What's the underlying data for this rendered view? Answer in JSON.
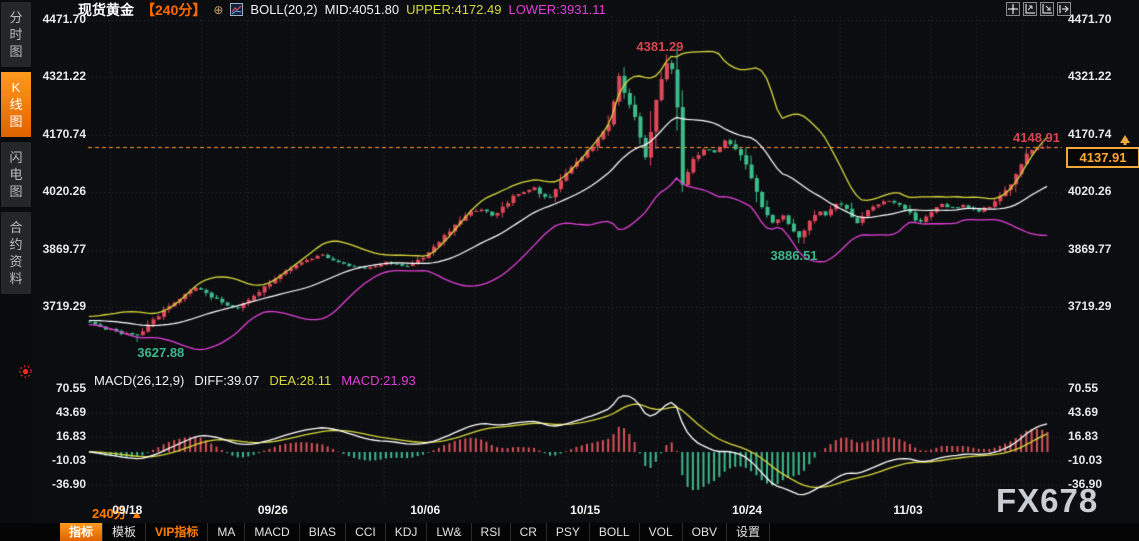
{
  "header": {
    "symbol": "现货黄金",
    "period": "【240分】",
    "plus_icon": "⊕",
    "boll_label": "BOLL(20,2)",
    "mid": "MID:4051.80",
    "upper": "UPPER:4172.49",
    "lower": "LOWER:3931.11"
  },
  "sidebar": {
    "tabs": [
      {
        "label": "分时图",
        "active": false
      },
      {
        "label": "K线图",
        "active": true
      },
      {
        "label": "闪电图",
        "active": false
      },
      {
        "label": "合约资料",
        "active": false
      }
    ]
  },
  "main_axis": {
    "ticks": [
      {
        "label": "4471.70",
        "price": 4471.7
      },
      {
        "label": "4321.22",
        "price": 4321.22
      },
      {
        "label": "4170.74",
        "price": 4170.74
      },
      {
        "label": "4020.26",
        "price": 4020.26
      },
      {
        "label": "3869.77",
        "price": 3869.77
      },
      {
        "label": "3719.29",
        "price": 3719.29
      }
    ]
  },
  "annotations": [
    {
      "text": "4381.29",
      "t": 0.597,
      "price": 4401,
      "color": "#d64550",
      "align": "center"
    },
    {
      "text": "4148.91",
      "t": 0.995,
      "price": 4163,
      "color": "#d64550",
      "align": "right"
    },
    {
      "text": "3886.51",
      "t": 0.737,
      "price": 3854,
      "color": "#3cb98a",
      "align": "center"
    },
    {
      "text": "3627.88",
      "t": 0.076,
      "price": 3599,
      "color": "#3cb98a",
      "align": "center"
    }
  ],
  "price_tag": {
    "value": "4137.91",
    "price": 4137.91
  },
  "macd_pane": {
    "title": "MACD(26,12,9)",
    "diff_label": "DIFF:39.07",
    "dea_label": "DEA:28.11",
    "macd_label": "MACD:21.93",
    "ticks": [
      {
        "label": "70.55",
        "value": 70.55
      },
      {
        "label": "43.69",
        "value": 43.69
      },
      {
        "label": "16.83",
        "value": 16.83
      },
      {
        "label": "-10.03",
        "value": -10.03
      },
      {
        "label": "-36.90",
        "value": -36.9
      }
    ]
  },
  "xaxis": {
    "period_label": "240分 ▲",
    "dates": [
      {
        "label": "09/18",
        "t": 0.041
      },
      {
        "label": "09/26",
        "t": 0.193
      },
      {
        "label": "10/06",
        "t": 0.352
      },
      {
        "label": "10/15",
        "t": 0.519
      },
      {
        "label": "10/24",
        "t": 0.688
      },
      {
        "label": "11/03",
        "t": 0.856
      }
    ]
  },
  "toolbar": {
    "items": [
      {
        "label": "指标",
        "style": "active"
      },
      {
        "label": "模板",
        "style": "normal"
      },
      {
        "label": "VIP指标",
        "style": "vip"
      },
      {
        "label": "MA",
        "style": "normal"
      },
      {
        "label": "MACD",
        "style": "normal"
      },
      {
        "label": "BIAS",
        "style": "normal"
      },
      {
        "label": "CCI",
        "style": "normal"
      },
      {
        "label": "KDJ",
        "style": "normal"
      },
      {
        "label": "LW&",
        "style": "normal"
      },
      {
        "label": "RSI",
        "style": "normal"
      },
      {
        "label": "CR",
        "style": "normal"
      },
      {
        "label": "PSY",
        "style": "normal"
      },
      {
        "label": "BOLL",
        "style": "normal"
      },
      {
        "label": "VOL",
        "style": "normal"
      },
      {
        "label": "OBV",
        "style": "normal"
      },
      {
        "label": "设置",
        "style": "normal"
      }
    ]
  },
  "watermark": "FX678",
  "colors": {
    "bg": "#0c0d10",
    "up": "#e0485a",
    "down": "#3bbd8b",
    "boll_upper": "#d6d93c",
    "boll_mid": "#ffffff",
    "boll_lower": "#e23fd8",
    "diff_line": "#ffffff",
    "dea_line": "#d6d93c",
    "hist_pos": "#d8545a",
    "hist_neg": "#3bbd8b",
    "grid": "#2b2d34",
    "price_line": "#ff9828",
    "accent": "#ff7300"
  },
  "chart_data": [
    {
      "type": "candlestick",
      "title": "现货黄金 240分 K线 + BOLL(20,2)",
      "ylim": [
        3580,
        4500
      ],
      "y_ticks": [
        4471.7,
        4321.22,
        4170.74,
        4020.26,
        3869.77,
        3719.29
      ],
      "x_ticks": [
        "09/18",
        "09/26",
        "10/06",
        "10/15",
        "10/24",
        "11/03"
      ],
      "boll": {
        "mid": 4051.8,
        "upper": 4172.49,
        "lower": 3931.11
      },
      "last_price": 4137.91,
      "key_points": {
        "peak_high": 4381.29,
        "recent_high": 4148.91,
        "start_low": 3627.88,
        "pullback_low": 3886.51
      },
      "close_anchors": [
        [
          -0.22,
          3700
        ],
        [
          -0.12,
          3668
        ],
        [
          -0.05,
          3690
        ],
        [
          0,
          3682
        ],
        [
          0.0125,
          3663
        ],
        [
          0.033,
          3652
        ],
        [
          0.049,
          3643
        ],
        [
          0.065,
          3683
        ],
        [
          0.091,
          3737
        ],
        [
          0.112,
          3772
        ],
        [
          0.133,
          3737
        ],
        [
          0.153,
          3715
        ],
        [
          0.174,
          3752
        ],
        [
          0.195,
          3800
        ],
        [
          0.221,
          3838
        ],
        [
          0.242,
          3856
        ],
        [
          0.268,
          3827
        ],
        [
          0.289,
          3817
        ],
        [
          0.31,
          3838
        ],
        [
          0.331,
          3823
        ],
        [
          0.352,
          3858
        ],
        [
          0.373,
          3912
        ],
        [
          0.393,
          3962
        ],
        [
          0.409,
          3978
        ],
        [
          0.422,
          3953
        ],
        [
          0.443,
          4014
        ],
        [
          0.463,
          4032
        ],
        [
          0.479,
          4000
        ],
        [
          0.495,
          4066
        ],
        [
          0.513,
          4110
        ],
        [
          0.529,
          4152
        ],
        [
          0.543,
          4205
        ],
        [
          0.553,
          4330
        ],
        [
          0.559,
          4270
        ],
        [
          0.568,
          4226
        ],
        [
          0.581,
          4100
        ],
        [
          0.589,
          4240
        ],
        [
          0.597,
          4320
        ],
        [
          0.603,
          4365
        ],
        [
          0.611,
          4330
        ],
        [
          0.619,
          4030
        ],
        [
          0.629,
          4105
        ],
        [
          0.642,
          4132
        ],
        [
          0.654,
          4120
        ],
        [
          0.663,
          4158
        ],
        [
          0.673,
          4140
        ],
        [
          0.684,
          4100
        ],
        [
          0.693,
          4040
        ],
        [
          0.703,
          3975
        ],
        [
          0.714,
          3935
        ],
        [
          0.723,
          3962
        ],
        [
          0.734,
          3922
        ],
        [
          0.742,
          3896
        ],
        [
          0.749,
          3935
        ],
        [
          0.76,
          3974
        ],
        [
          0.77,
          3960
        ],
        [
          0.781,
          4000
        ],
        [
          0.791,
          3974
        ],
        [
          0.801,
          3936
        ],
        [
          0.812,
          3974
        ],
        [
          0.824,
          3988
        ],
        [
          0.835,
          4000
        ],
        [
          0.845,
          3988
        ],
        [
          0.856,
          3968
        ],
        [
          0.864,
          3938
        ],
        [
          0.875,
          3962
        ],
        [
          0.887,
          3988
        ],
        [
          0.9,
          3978
        ],
        [
          0.912,
          3988
        ],
        [
          0.925,
          3970
        ],
        [
          0.937,
          3980
        ],
        [
          0.948,
          4002
        ],
        [
          0.958,
          4028
        ],
        [
          0.969,
          4080
        ],
        [
          0.979,
          4126
        ],
        [
          0.99,
          4135
        ],
        [
          1,
          4137.91
        ]
      ]
    },
    {
      "type": "bar+line",
      "title": "MACD(26,12,9)",
      "diff": 39.07,
      "dea": 28.11,
      "macd": 21.93,
      "y_ticks": [
        70.55,
        43.69,
        16.83,
        -10.03,
        -36.9
      ],
      "legend": [
        "DIFF (white)",
        "DEA (yellow)",
        "MACD histogram (red positive / green negative)"
      ]
    }
  ]
}
